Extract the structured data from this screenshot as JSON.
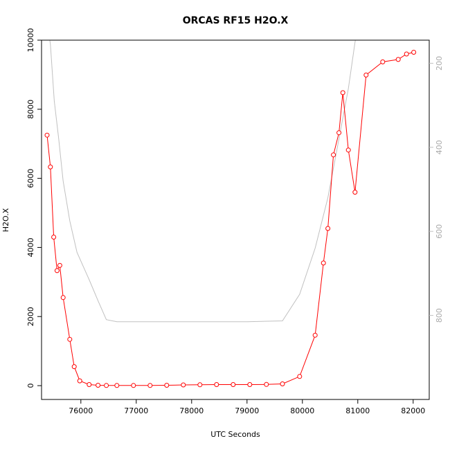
{
  "chart_data": {
    "type": "line",
    "title": "ORCAS RF15 H2O.X",
    "xlabel": "UTC Seconds",
    "ylabel": "H2O.X",
    "xlim": [
      75290,
      82290
    ],
    "ylim": [
      -400,
      10000
    ],
    "x_ticks": [
      76000,
      77000,
      78000,
      79000,
      80000,
      81000,
      82000
    ],
    "y_ticks": [
      0,
      2000,
      4000,
      6000,
      8000,
      10000
    ],
    "grid": false,
    "legend": "none",
    "series": [
      {
        "color": "#ff0000",
        "marker": "open-circle",
        "x": [
          75390,
          75450,
          75510,
          75570,
          75620,
          75680,
          75800,
          75880,
          75980,
          76150,
          76310,
          76460,
          76650,
          76950,
          77250,
          77550,
          77850,
          78150,
          78450,
          78750,
          79050,
          79350,
          79640,
          79950,
          80230,
          80380,
          80460,
          80560,
          80660,
          80730,
          80830,
          80950,
          81150,
          81450,
          81730,
          81880,
          82010
        ],
        "y": [
          7250,
          6330,
          4300,
          3330,
          3480,
          2550,
          1340,
          550,
          140,
          30,
          10,
          5,
          5,
          5,
          5,
          10,
          20,
          25,
          30,
          30,
          30,
          35,
          50,
          265,
          1460,
          3550,
          4550,
          6680,
          7320,
          8480,
          6820,
          5600,
          8990,
          9370,
          9440,
          9600,
          9650
        ]
      }
    ],
    "secondary_axis": {
      "side": "right",
      "reversed": true,
      "ylim": [
        1000,
        145
      ],
      "ticks": [
        200,
        400,
        600,
        800
      ],
      "color": "#c0c0c0",
      "series": [
        {
          "color": "#c0c0c0",
          "x": [
            75390,
            75450,
            75520,
            75600,
            75680,
            75800,
            75930,
            76150,
            76310,
            76460,
            76650,
            77000,
            78000,
            79000,
            79640,
            79950,
            80230,
            80460,
            80660,
            80830,
            80950,
            81050
          ],
          "y": [
            100,
            155,
            290,
            380,
            480,
            575,
            650,
            715,
            765,
            810,
            815,
            815,
            815,
            815,
            813,
            750,
            640,
            520,
            380,
            260,
            150,
            80
          ]
        }
      ]
    }
  }
}
